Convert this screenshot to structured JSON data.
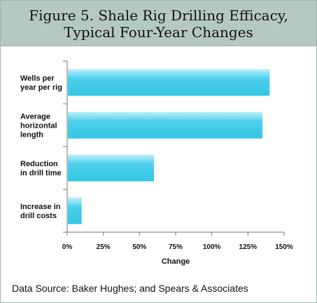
{
  "chart_data": {
    "type": "bar",
    "orientation": "horizontal",
    "title_lines": [
      "Figure 5. Shale Rig Drilling Efficacy,",
      "Typical Four-Year Changes"
    ],
    "categories": [
      [
        "Wells per",
        "year per rig"
      ],
      [
        "Average",
        "horizontal",
        "length"
      ],
      [
        "Reduction",
        "in drill time"
      ],
      [
        "Increase in",
        "drill costs"
      ]
    ],
    "values": [
      140,
      135,
      60,
      10
    ],
    "xlabel": "Change",
    "ylabel": "",
    "xlim": [
      0,
      150
    ],
    "ticks": [
      0,
      25,
      50,
      75,
      100,
      125,
      150
    ],
    "tick_labels": [
      "0%",
      "25%",
      "50%",
      "75%",
      "100%",
      "125%",
      "150%"
    ],
    "value_unit": "%",
    "grid": false,
    "bar_color": "#33c5e5",
    "bar_highlight": "#bdf0fb"
  },
  "source": "Data Source: Baker Hughes; and Spears & Associates"
}
